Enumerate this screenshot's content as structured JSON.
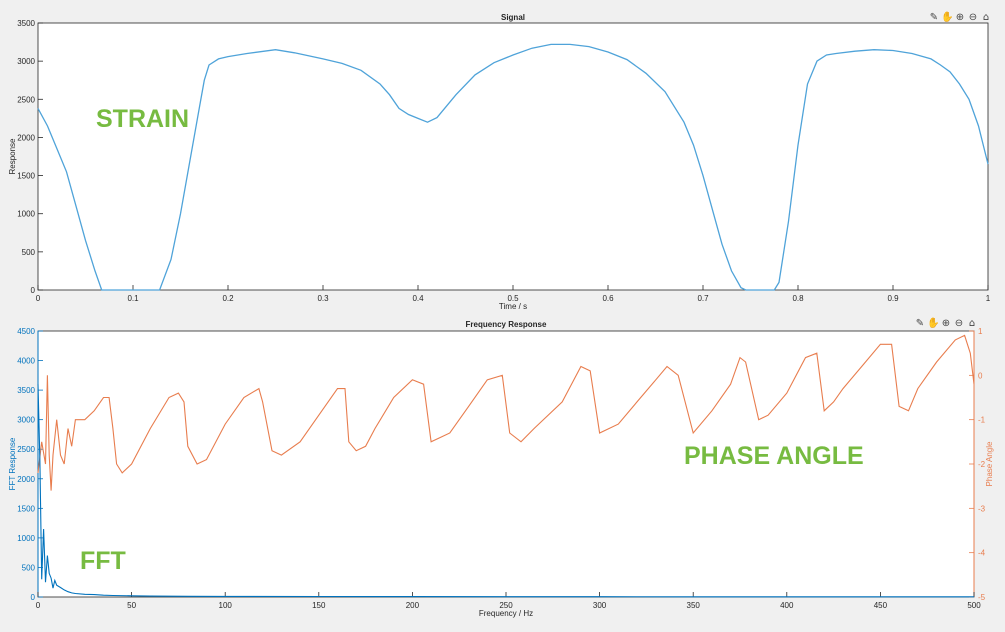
{
  "figure": {
    "background": "#f0f0f0",
    "axes_background": "#ffffff",
    "annotation_color": "#77bb41"
  },
  "icons": [
    "brush-icon",
    "pan-hand-icon",
    "zoom-in-icon",
    "zoom-out-icon",
    "home-icon"
  ],
  "chart_data": [
    {
      "type": "line",
      "title": "Signal",
      "xlabel": "Time / s",
      "ylabel": "Response",
      "xlim": [
        0,
        1
      ],
      "ylim": [
        0,
        3500
      ],
      "xticks": [
        0,
        0.1,
        0.2,
        0.3,
        0.4,
        0.5,
        0.6,
        0.7,
        0.8,
        0.9,
        1
      ],
      "xtick_labels": [
        "0",
        "0.1",
        "0.2",
        "0.3",
        "0.4",
        "0.5",
        "0.6",
        "0.7",
        "0.8",
        "0.9",
        "1"
      ],
      "yticks": [
        0,
        500,
        1000,
        1500,
        2000,
        2500,
        3000,
        3500
      ],
      "ytick_labels": [
        "0",
        "500",
        "1000",
        "1500",
        "2000",
        "2500",
        "3000",
        "3500"
      ],
      "grid": false,
      "annotation": "STRAIN",
      "series": [
        {
          "color": "#4fa3d9",
          "x": [
            0,
            0.01,
            0.02,
            0.03,
            0.04,
            0.05,
            0.06,
            0.067,
            0.08,
            0.1,
            0.12,
            0.128,
            0.14,
            0.15,
            0.16,
            0.17,
            0.175,
            0.18,
            0.19,
            0.2,
            0.22,
            0.25,
            0.27,
            0.3,
            0.32,
            0.34,
            0.36,
            0.37,
            0.38,
            0.39,
            0.4,
            0.41,
            0.42,
            0.44,
            0.46,
            0.48,
            0.5,
            0.52,
            0.54,
            0.56,
            0.58,
            0.6,
            0.62,
            0.64,
            0.66,
            0.68,
            0.69,
            0.7,
            0.71,
            0.72,
            0.73,
            0.74,
            0.745,
            0.76,
            0.775,
            0.78,
            0.79,
            0.8,
            0.81,
            0.82,
            0.83,
            0.84,
            0.86,
            0.88,
            0.9,
            0.92,
            0.94,
            0.95,
            0.96,
            0.97,
            0.98,
            0.99,
            1.0
          ],
          "y": [
            2380,
            2150,
            1850,
            1550,
            1100,
            650,
            250,
            0,
            0,
            0,
            0,
            0,
            400,
            1000,
            1700,
            2400,
            2750,
            2950,
            3030,
            3060,
            3100,
            3150,
            3110,
            3030,
            2970,
            2880,
            2700,
            2560,
            2380,
            2300,
            2250,
            2200,
            2260,
            2560,
            2820,
            2980,
            3080,
            3170,
            3220,
            3220,
            3190,
            3120,
            3020,
            2840,
            2600,
            2200,
            1900,
            1500,
            1050,
            600,
            250,
            30,
            0,
            0,
            0,
            100,
            900,
            1900,
            2700,
            3000,
            3080,
            3100,
            3130,
            3150,
            3140,
            3100,
            3030,
            2950,
            2860,
            2700,
            2500,
            2150,
            1650
          ]
        }
      ]
    },
    {
      "type": "line",
      "title": "Frequency Response",
      "xlabel": "Frequency / Hz",
      "ylabel": "FFT Response",
      "ylabel_right": "Phase Angle",
      "xlim": [
        0,
        500
      ],
      "ylim": [
        0,
        4500
      ],
      "ylim_right": [
        -5,
        1
      ],
      "xticks": [
        0,
        50,
        100,
        150,
        200,
        250,
        300,
        350,
        400,
        450,
        500
      ],
      "xtick_labels": [
        "0",
        "50",
        "100",
        "150",
        "200",
        "250",
        "300",
        "350",
        "400",
        "450",
        "500"
      ],
      "yticks": [
        0,
        500,
        1000,
        1500,
        2000,
        2500,
        3000,
        3500,
        4000,
        4500
      ],
      "ytick_labels": [
        "0",
        "500",
        "1000",
        "1500",
        "2000",
        "2500",
        "3000",
        "3500",
        "4000",
        "4500"
      ],
      "yticks_right": [
        -5,
        -4,
        -3,
        -2,
        -1,
        0,
        1
      ],
      "ytick_labels_right": [
        "-5",
        "-4",
        "-3",
        "-2",
        "-1",
        "0",
        "1"
      ],
      "grid": false,
      "annotations": [
        "PHASE ANGLE",
        "FFT"
      ],
      "series": [
        {
          "axis": "left",
          "color": "#0072bd",
          "x": [
            0,
            1,
            2,
            3,
            4,
            5,
            6,
            7,
            8,
            9,
            10,
            12,
            14,
            16,
            18,
            20,
            25,
            30,
            35,
            40,
            50,
            60,
            80,
            100,
            150,
            200,
            250,
            300,
            350,
            400,
            450,
            500
          ],
          "y": [
            3600,
            2300,
            300,
            1150,
            250,
            700,
            400,
            320,
            150,
            280,
            200,
            160,
            120,
            90,
            70,
            60,
            45,
            40,
            30,
            25,
            20,
            15,
            12,
            10,
            8,
            6,
            5,
            5,
            4,
            4,
            4,
            4
          ]
        },
        {
          "axis": "right",
          "color": "#e87d4e",
          "x": [
            0,
            2,
            4,
            5,
            6,
            7,
            8,
            10,
            12,
            14,
            16,
            18,
            20,
            25,
            30,
            35,
            38,
            40,
            42,
            45,
            50,
            60,
            70,
            75,
            78,
            80,
            85,
            90,
            100,
            110,
            118,
            120,
            125,
            130,
            140,
            150,
            160,
            164,
            166,
            170,
            175,
            180,
            190,
            200,
            206,
            210,
            215,
            220,
            230,
            240,
            248,
            252,
            258,
            265,
            280,
            290,
            295,
            300,
            310,
            320,
            330,
            336,
            342,
            350,
            360,
            370,
            375,
            378,
            385,
            390,
            400,
            410,
            416,
            420,
            425,
            430,
            440,
            450,
            456,
            460,
            465,
            470,
            480,
            490,
            495,
            498,
            500
          ],
          "y": [
            -2.2,
            -1.5,
            -2.0,
            0.0,
            -1.8,
            -2.6,
            -1.8,
            -1.0,
            -1.8,
            -2.0,
            -1.2,
            -1.6,
            -1.0,
            -1.0,
            -0.8,
            -0.5,
            -0.5,
            -1.2,
            -2.0,
            -2.2,
            -2.0,
            -1.2,
            -0.5,
            -0.4,
            -0.6,
            -1.6,
            -2.0,
            -1.9,
            -1.1,
            -0.5,
            -0.3,
            -0.6,
            -1.7,
            -1.8,
            -1.5,
            -0.9,
            -0.3,
            -0.3,
            -1.5,
            -1.7,
            -1.6,
            -1.2,
            -0.5,
            -0.1,
            -0.2,
            -1.5,
            -1.4,
            -1.3,
            -0.7,
            -0.1,
            0.0,
            -1.3,
            -1.5,
            -1.2,
            -0.6,
            0.2,
            0.1,
            -1.3,
            -1.1,
            -0.6,
            -0.1,
            0.2,
            0.0,
            -1.3,
            -0.8,
            -0.2,
            0.4,
            0.3,
            -1.0,
            -0.9,
            -0.4,
            0.4,
            0.5,
            -0.8,
            -0.6,
            -0.3,
            0.2,
            0.7,
            0.7,
            -0.7,
            -0.8,
            -0.3,
            0.3,
            0.8,
            0.9,
            0.5,
            -0.2
          ]
        }
      ]
    }
  ]
}
